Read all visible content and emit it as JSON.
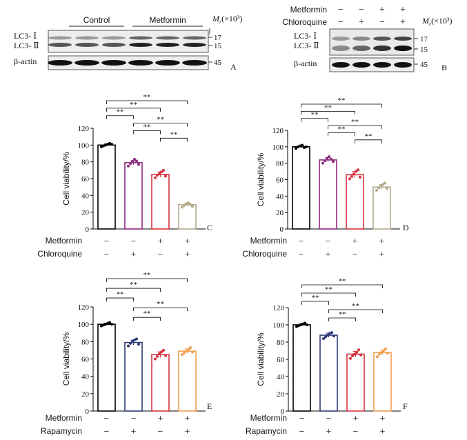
{
  "blots": [
    {
      "panel_letter": "A",
      "group_labels": [
        "Control",
        "Metformin"
      ],
      "unit_label": "Mr (×10³)",
      "unit_base": "M",
      "unit_sub": "r",
      "unit_tail": "(×10³)",
      "band_labels": [
        "LC3- Ⅰ",
        "LC3- Ⅱ",
        "β-actin"
      ],
      "marker_labels": [
        "17",
        "15",
        "45"
      ],
      "lanes": 6
    },
    {
      "panel_letter": "B",
      "treatment_rows": [
        {
          "name": "Metformin",
          "signs": [
            "−",
            "−",
            "+",
            "+"
          ]
        },
        {
          "name": "Chloroquine",
          "signs": [
            "−",
            "+",
            "−",
            "+"
          ]
        }
      ],
      "unit_label": "Mr (×10³)",
      "unit_base": "M",
      "unit_sub": "r",
      "unit_tail": "(×10³)",
      "band_labels": [
        "LC3- Ⅰ",
        "LC3- Ⅱ",
        "β-actin"
      ],
      "marker_labels": [
        "17",
        "15",
        "45"
      ],
      "lanes": 4
    }
  ],
  "chart_data": [
    {
      "panel_letter": "C",
      "type": "bar",
      "ylabel": "Cell viability/%",
      "ylim": [
        0,
        120
      ],
      "yticks": [
        0,
        20,
        40,
        60,
        80,
        100,
        120
      ],
      "values": [
        100,
        79,
        65,
        29
      ],
      "colors": [
        "#000000",
        "#8b2a7e",
        "#d6313c",
        "#b3a98a"
      ],
      "points": [
        [
          98,
          99,
          100,
          101,
          102,
          101
        ],
        [
          75,
          78,
          80,
          83,
          81,
          77
        ],
        [
          61,
          64,
          66,
          68,
          70,
          63
        ],
        [
          26,
          28,
          30,
          31,
          29,
          27
        ]
      ],
      "significance": [
        "**",
        "**",
        "**",
        "**",
        "**",
        "**"
      ],
      "treatment_rows": [
        {
          "name": "Metformin",
          "signs": [
            "−",
            "−",
            "+",
            "+"
          ]
        },
        {
          "name": "Chloroquine",
          "signs": [
            "−",
            "+",
            "−",
            "+"
          ]
        }
      ]
    },
    {
      "panel_letter": "D",
      "type": "bar",
      "ylabel": "Cell viability/%",
      "ylim": [
        0,
        120
      ],
      "yticks": [
        0,
        20,
        40,
        60,
        80,
        100,
        120
      ],
      "values": [
        100,
        84,
        66,
        51
      ],
      "colors": [
        "#000000",
        "#8b2a7e",
        "#d6313c",
        "#b3a98a"
      ],
      "points": [
        [
          98,
          100,
          101,
          102,
          99,
          100
        ],
        [
          80,
          83,
          86,
          88,
          85,
          82
        ],
        [
          61,
          64,
          67,
          70,
          72,
          63
        ],
        [
          47,
          50,
          52,
          54,
          56,
          49
        ]
      ],
      "significance": [
        "**",
        "**",
        "**",
        "**",
        "**",
        "**"
      ],
      "treatment_rows": [
        {
          "name": "Metformin",
          "signs": [
            "−",
            "−",
            "+",
            "+"
          ]
        },
        {
          "name": "Chloroquine",
          "signs": [
            "−",
            "+",
            "−",
            "+"
          ]
        }
      ]
    },
    {
      "panel_letter": "E",
      "type": "bar",
      "ylabel": "Cell viability/%",
      "ylim": [
        0,
        120
      ],
      "yticks": [
        0,
        20,
        40,
        60,
        80,
        100,
        120
      ],
      "values": [
        100,
        79,
        65,
        69
      ],
      "colors": [
        "#000000",
        "#2e3a78",
        "#d6313c",
        "#f0a050"
      ],
      "points": [
        [
          98,
          99,
          100,
          101,
          102,
          100
        ],
        [
          75,
          78,
          80,
          82,
          83,
          77
        ],
        [
          60,
          63,
          66,
          68,
          70,
          64
        ],
        [
          65,
          67,
          69,
          71,
          73,
          68
        ]
      ],
      "significance": [
        "**",
        "**",
        "**",
        "**",
        "**"
      ],
      "treatment_rows": [
        {
          "name": "Metformin",
          "signs": [
            "−",
            "−",
            "+",
            "+"
          ]
        },
        {
          "name": "Rapamycin",
          "signs": [
            "−",
            "+",
            "−",
            "+"
          ]
        }
      ]
    },
    {
      "panel_letter": "F",
      "type": "bar",
      "ylabel": "Cell viability/%",
      "ylim": [
        0,
        120
      ],
      "yticks": [
        0,
        20,
        40,
        60,
        80,
        100,
        120
      ],
      "values": [
        100,
        88,
        66,
        68
      ],
      "colors": [
        "#000000",
        "#2e3a78",
        "#d6313c",
        "#f0a050"
      ],
      "points": [
        [
          98,
          99,
          100,
          101,
          102,
          100
        ],
        [
          84,
          86,
          88,
          90,
          91,
          87
        ],
        [
          61,
          64,
          66,
          68,
          71,
          65
        ],
        [
          63,
          66,
          68,
          70,
          72,
          67
        ]
      ],
      "significance": [
        "**",
        "**",
        "**",
        "**",
        "**"
      ],
      "treatment_rows": [
        {
          "name": "Metformin",
          "signs": [
            "−",
            "−",
            "+",
            "+"
          ]
        },
        {
          "name": "Rapamycin",
          "signs": [
            "−",
            "+",
            "−",
            "+"
          ]
        }
      ]
    }
  ]
}
